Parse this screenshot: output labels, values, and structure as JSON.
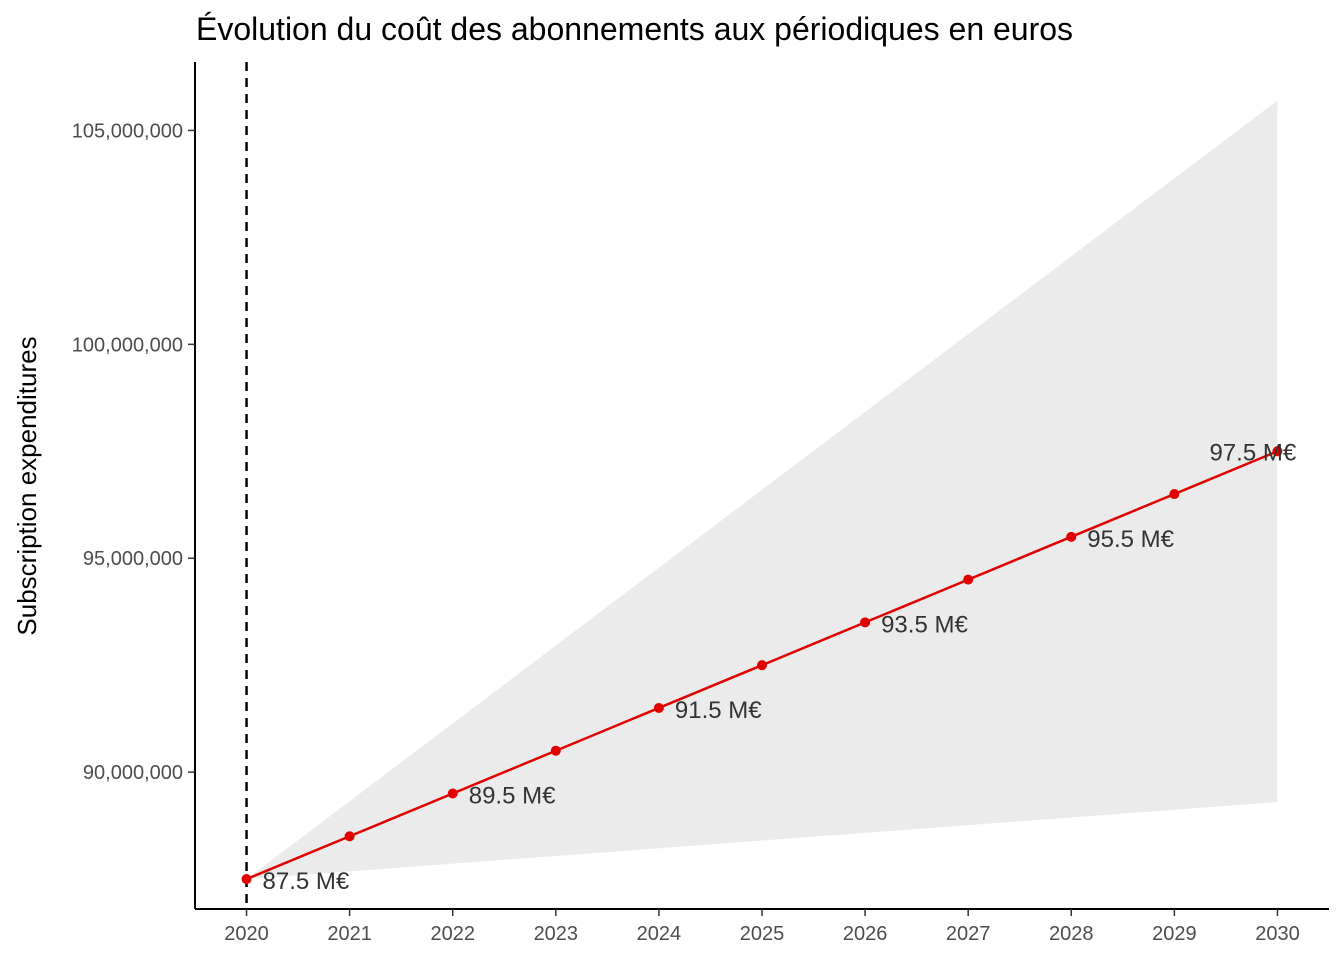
{
  "chart_data": {
    "type": "line",
    "title": "Évolution du coût des abonnements aux périodiques en euros",
    "xlabel": "",
    "ylabel": "Subscription expenditures",
    "x": [
      2020,
      2021,
      2022,
      2023,
      2024,
      2025,
      2026,
      2027,
      2028,
      2029,
      2030
    ],
    "series": [
      {
        "values": [
          87500000,
          88500000,
          89500000,
          90500000,
          91500000,
          92500000,
          93500000,
          94500000,
          95500000,
          96500000,
          97500000
        ],
        "color": "#e00000"
      }
    ],
    "band": {
      "lower": [
        87500000,
        87680000,
        87860000,
        88040000,
        88220000,
        88400000,
        88580000,
        88760000,
        88940000,
        89120000,
        89300000
      ],
      "upper": [
        87500000,
        89320000,
        91140000,
        92960000,
        94780000,
        96600000,
        98420000,
        100240000,
        102060000,
        103880000,
        105700000
      ],
      "color": "#ebebeb"
    },
    "data_labels": [
      {
        "x": 2020,
        "y": 87500000,
        "text": "87.5 M€"
      },
      {
        "x": 2022,
        "y": 89500000,
        "text": "89.5 M€"
      },
      {
        "x": 2024,
        "y": 91500000,
        "text": "91.5 M€"
      },
      {
        "x": 2026,
        "y": 93500000,
        "text": "93.5 M€"
      },
      {
        "x": 2028,
        "y": 95500000,
        "text": "95.5 M€"
      },
      {
        "x": 2030,
        "y": 97500000,
        "text": "97.5 M€"
      }
    ],
    "reference_line": {
      "x": 2020,
      "style": "dashed"
    },
    "xticks": [
      "2020",
      "2021",
      "2022",
      "2023",
      "2024",
      "2025",
      "2026",
      "2027",
      "2028",
      "2029",
      "2030"
    ],
    "yticks": [
      {
        "value": 90000000,
        "label": "90,000,000"
      },
      {
        "value": 95000000,
        "label": "95,000,000"
      },
      {
        "value": 100000000,
        "label": "100,000,000"
      },
      {
        "value": 105000000,
        "label": "105,000,000"
      }
    ],
    "xlim": [
      2019.5,
      2030.5
    ],
    "ylim": [
      86800000,
      106600000
    ],
    "grid": false,
    "legend": "none"
  }
}
